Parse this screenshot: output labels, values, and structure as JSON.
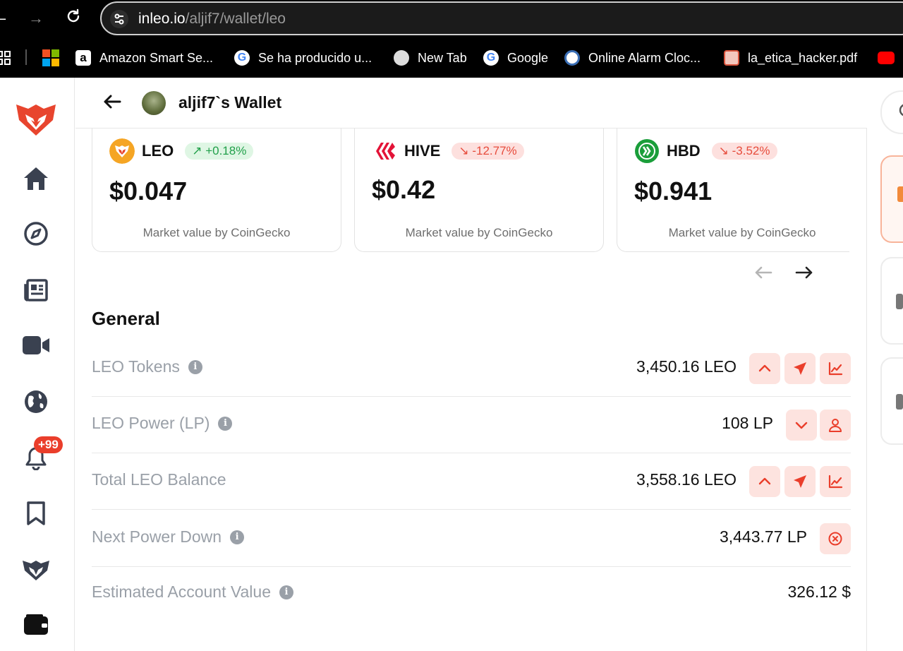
{
  "browser": {
    "url_host": "inleo.io",
    "url_path": "/aljif7/wallet/leo",
    "bookmarks": [
      {
        "label": "Amazon Smart Se...",
        "icon": "amazon-icon"
      },
      {
        "label": "Se ha producido u...",
        "icon": "google-icon"
      },
      {
        "label": "New Tab",
        "icon": "globe-icon"
      },
      {
        "label": "Google",
        "icon": "google-icon"
      },
      {
        "label": "Online Alarm Cloc...",
        "icon": "alarm-clock-icon"
      },
      {
        "label": "la_etica_hacker.pdf",
        "icon": "pdf-icon"
      }
    ]
  },
  "sidebar": {
    "notification_count": "+99",
    "items": [
      "home-icon",
      "explore-icon",
      "news-icon",
      "video-icon",
      "globe-icon",
      "bell-icon",
      "bookmark-icon",
      "leo-icon",
      "wallet-icon"
    ]
  },
  "header": {
    "title": "aljif7`s Wallet"
  },
  "coins": [
    {
      "name": "LEO",
      "change": "↗ +0.18%",
      "direction": "up",
      "price": "$0.047",
      "source": "Market value by CoinGecko",
      "color": "#f5a524"
    },
    {
      "name": "HIVE",
      "change": "↘ -12.77%",
      "direction": "down",
      "price": "$0.42",
      "source": "Market value by CoinGecko",
      "color": "#e31337"
    },
    {
      "name": "HBD",
      "change": "↘ -3.52%",
      "direction": "down",
      "price": "$0.941",
      "source": "Market value by CoinGecko",
      "color": "#1a9e3a"
    }
  ],
  "general": {
    "title": "General",
    "rows": [
      {
        "label": "LEO Tokens",
        "value": "3,450.16 LEO",
        "info": true
      },
      {
        "label": "LEO Power (LP)",
        "value": "108 LP",
        "info": true
      },
      {
        "label": "Total LEO Balance",
        "value": "3,558.16 LEO",
        "info": false
      },
      {
        "label": "Next Power Down",
        "value": "3,443.77 LP",
        "info": true
      },
      {
        "label": "Estimated Account Value",
        "value": "326.12 $",
        "info": true
      }
    ]
  },
  "colors": {
    "accent": "#ea3e2b",
    "action_bg": "#fde3df",
    "label_gray": "#9aa0a8"
  }
}
